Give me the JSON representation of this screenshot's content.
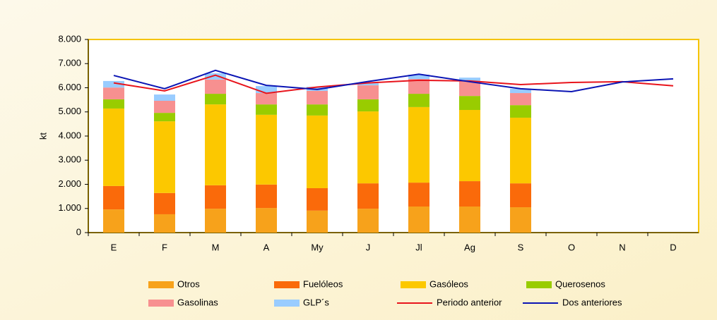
{
  "chart_data": {
    "type": "bar",
    "stacked": true,
    "y_label": "kt",
    "categories": [
      "E",
      "F",
      "M",
      "A",
      "My",
      "J",
      "Jl",
      "Ag",
      "S",
      "O",
      "N",
      "D"
    ],
    "series": [
      {
        "name": "Otros",
        "color": "#f7a21b",
        "values": [
          960,
          760,
          990,
          1020,
          910,
          990,
          1080,
          1080,
          1050,
          null,
          null,
          null
        ]
      },
      {
        "name": "Fuelóleos",
        "color": "#fa6a0a",
        "values": [
          970,
          880,
          970,
          970,
          930,
          1050,
          990,
          1050,
          990,
          null,
          null,
          null
        ]
      },
      {
        "name": "Gasóleos",
        "color": "#fcc800",
        "values": [
          3210,
          2970,
          3350,
          2890,
          3010,
          2980,
          3130,
          2950,
          2720,
          null,
          null,
          null
        ]
      },
      {
        "name": "Querosenos",
        "color": "#99cc00",
        "values": [
          380,
          350,
          440,
          430,
          460,
          500,
          550,
          580,
          520,
          null,
          null,
          null
        ]
      },
      {
        "name": "Gasolinas",
        "color": "#f79090",
        "values": [
          490,
          500,
          590,
          470,
          560,
          580,
          610,
          590,
          500,
          null,
          null,
          null
        ]
      },
      {
        "name": "GLP´s",
        "color": "#99ccff",
        "values": [
          270,
          260,
          260,
          290,
          170,
          120,
          180,
          170,
          180,
          null,
          null,
          null
        ]
      },
      {
        "name": "Periodo anterior",
        "type": "line",
        "color": "#e8141c",
        "values": [
          6200,
          5870,
          6520,
          5770,
          6030,
          6200,
          6310,
          6280,
          6130,
          6220,
          6250,
          6080
        ]
      },
      {
        "name": "Dos anteriores",
        "type": "line",
        "color": "#0a14b4",
        "values": [
          6510,
          5960,
          6720,
          6100,
          5930,
          6260,
          6560,
          6250,
          5960,
          5840,
          6240,
          6370
        ]
      }
    ],
    "ylim": [
      0,
      8000
    ],
    "yticks": [
      0,
      {
        "value": 1000,
        "label": "1.000"
      },
      {
        "value": 2000,
        "label": "2.000"
      },
      {
        "value": 3000,
        "label": "3.000"
      },
      {
        "value": 4000,
        "label": "4.000"
      },
      {
        "value": 5000,
        "label": "5.000"
      },
      {
        "value": 6000,
        "label": "6.000"
      },
      {
        "value": 7000,
        "label": "7.000"
      },
      {
        "value": 8000,
        "label": "8.000"
      }
    ],
    "grid": false,
    "legend": "bottom"
  }
}
